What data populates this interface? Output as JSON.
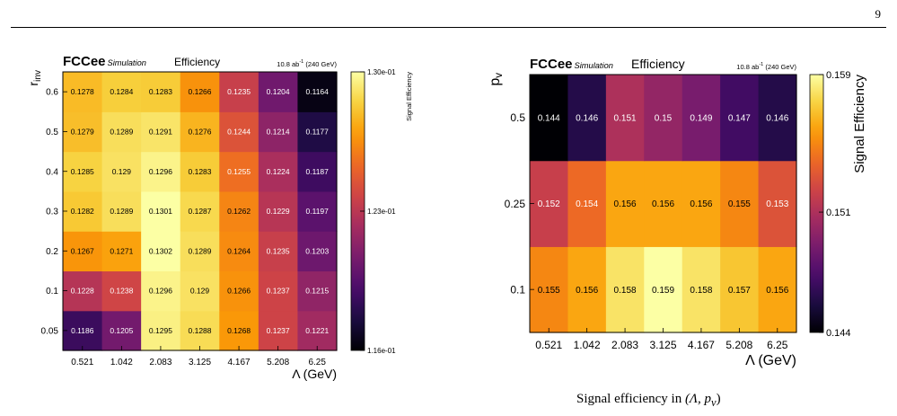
{
  "page": {
    "number": "9",
    "caption_prefix": "Signal efficiency in ",
    "caption_math": "(Λ, p",
    "caption_sub": "v",
    "caption_close": ")"
  },
  "colorscale": [
    "#000004",
    "#1b0c41",
    "#4a0c6b",
    "#781c6d",
    "#a52c60",
    "#cf4446",
    "#ed6925",
    "#fb9b06",
    "#f7d13d",
    "#fcffa4"
  ],
  "chart_data": [
    {
      "type": "heatmap",
      "brand": "FCCee",
      "brand_sub": "Simulation",
      "title": "Efficiency",
      "lumi_prefix": "10.8 ab",
      "lumi_sup": "-1",
      "lumi_suffix": " (240 GeV)",
      "xlabel": "Λ (GeV)",
      "ylabel_main": "r",
      "ylabel_sub": "inv",
      "zlabel": "Signal Efficiency",
      "x_categories": [
        "0.521",
        "1.042",
        "2.083",
        "3.125",
        "4.167",
        "5.208",
        "6.25"
      ],
      "y_categories": [
        "0.05",
        "0.1",
        "0.2",
        "0.3",
        "0.4",
        "0.5",
        "0.6"
      ],
      "values": [
        [
          0.1186,
          0.1205,
          0.1295,
          0.1288,
          0.1268,
          0.1237,
          0.1221
        ],
        [
          0.1228,
          0.1238,
          0.1296,
          0.129,
          0.1266,
          0.1237,
          0.1215
        ],
        [
          0.1267,
          0.1271,
          0.1302,
          0.1289,
          0.1264,
          0.1235,
          0.1203
        ],
        [
          0.1282,
          0.1289,
          0.1301,
          0.1287,
          0.1262,
          0.1229,
          0.1197
        ],
        [
          0.1285,
          0.129,
          0.1296,
          0.1283,
          0.1255,
          0.1224,
          0.1187
        ],
        [
          0.1279,
          0.1289,
          0.1291,
          0.1276,
          0.1244,
          0.1214,
          0.1177
        ],
        [
          0.1278,
          0.1284,
          0.1283,
          0.1266,
          0.1235,
          0.1204,
          0.1164
        ]
      ],
      "zlim": [
        0.116,
        0.13
      ],
      "colorbar_ticks": [
        {
          "value": 0.13,
          "label": "1.30e-01"
        },
        {
          "value": 0.123,
          "label": "1.23e-01"
        },
        {
          "value": 0.116,
          "label": "1.16e-01"
        }
      ]
    },
    {
      "type": "heatmap",
      "brand": "FCCee",
      "brand_sub": "Simulation",
      "title": "Efficiency",
      "lumi_prefix": "10.8 ab",
      "lumi_sup": "-1",
      "lumi_suffix": " (240 GeV)",
      "xlabel": "Λ (GeV)",
      "ylabel_main": "p",
      "ylabel_sub": "v",
      "zlabel": "Signal Efficiency",
      "x_categories": [
        "0.521",
        "1.042",
        "2.083",
        "3.125",
        "4.167",
        "5.208",
        "6.25"
      ],
      "y_categories": [
        "0.1",
        "0.25",
        "0.5"
      ],
      "values": [
        [
          0.155,
          0.156,
          0.158,
          0.159,
          0.158,
          0.157,
          0.156
        ],
        [
          0.152,
          0.154,
          0.156,
          0.156,
          0.156,
          0.155,
          0.153
        ],
        [
          0.144,
          0.146,
          0.151,
          0.15,
          0.149,
          0.147,
          0.146
        ]
      ],
      "zlim": [
        0.144,
        0.159
      ],
      "colorbar_ticks": [
        {
          "value": 0.159,
          "label": "0.159"
        },
        {
          "value": 0.151,
          "label": "0.151"
        },
        {
          "value": 0.144,
          "label": "0.144"
        }
      ]
    }
  ]
}
